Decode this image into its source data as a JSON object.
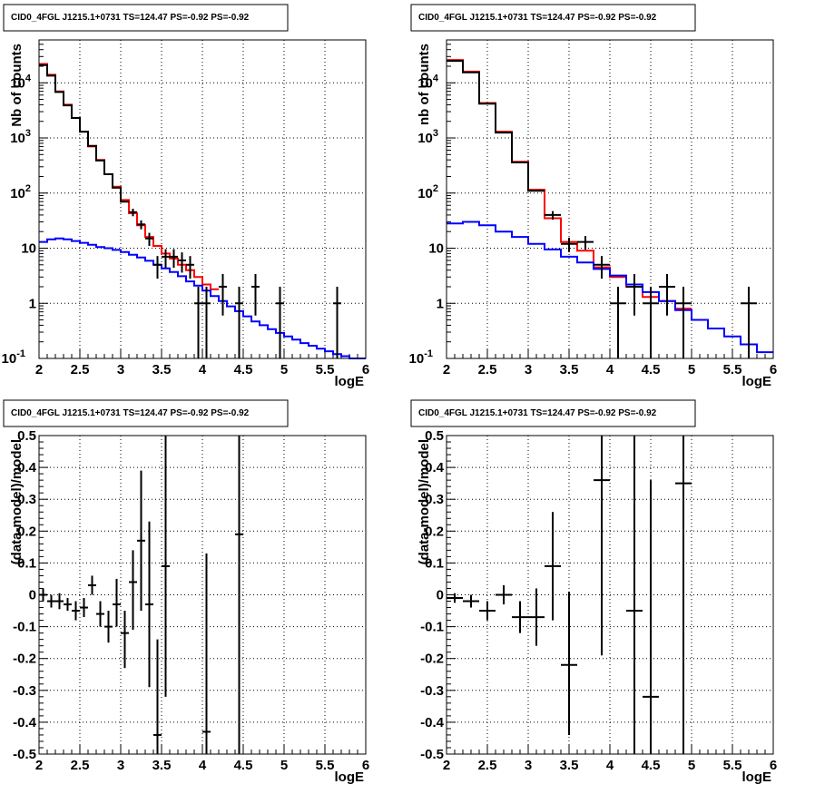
{
  "chart_data": [
    {
      "type": "line",
      "title": "CID0_4FGL J1215.1+0731 TS=124.47 PS=-0.92 PS=-0.92",
      "xlabel": "logE",
      "ylabel": "Nb of counts",
      "xlim": [
        2,
        6
      ],
      "ylim": [
        0.1,
        60000
      ],
      "yscale": "log",
      "x_ticks": [
        "2",
        "2.5",
        "3",
        "3.5",
        "4",
        "4.5",
        "5",
        "5.5",
        "6"
      ],
      "y_ticks": [
        "10^-1",
        "1",
        "10",
        "10^2",
        "10^3",
        "10^4"
      ],
      "grid": true,
      "series": [
        {
          "kind": "step",
          "color": "#ff0000",
          "bin_width": 0.1,
          "x": [
            2.0,
            2.1,
            2.2,
            2.3,
            2.4,
            2.5,
            2.6,
            2.7,
            2.8,
            2.9,
            3.0,
            3.1,
            3.2,
            3.3,
            3.4,
            3.5,
            3.6,
            3.7,
            3.8,
            3.9,
            4.0,
            4.1
          ],
          "values": [
            22000,
            14000,
            7000,
            4000,
            2300,
            1300,
            700,
            400,
            220,
            130,
            75,
            43,
            26,
            16,
            11,
            8,
            6.5,
            5,
            4,
            3,
            2.2,
            1.8
          ]
        },
        {
          "kind": "step",
          "color": "#0000ff",
          "bin_width": 0.1,
          "x": [
            2.0,
            2.1,
            2.2,
            2.3,
            2.4,
            2.5,
            2.6,
            2.7,
            2.8,
            2.9,
            3.0,
            3.1,
            3.2,
            3.3,
            3.4,
            3.5,
            3.6,
            3.7,
            3.8,
            3.9,
            4.0,
            4.1,
            4.2,
            4.3,
            4.4,
            4.5,
            4.6,
            4.7,
            4.8,
            4.9,
            5.0,
            5.1,
            5.2,
            5.3,
            5.4,
            5.5,
            5.6,
            5.7,
            5.8,
            5.9
          ],
          "values": [
            13,
            14.5,
            15,
            14.5,
            13.5,
            12.5,
            11.5,
            10.5,
            10,
            9.3,
            8.5,
            7.6,
            6.8,
            5.9,
            5,
            4.3,
            3.7,
            3.1,
            2.5,
            2.1,
            1.7,
            1.35,
            1.1,
            0.88,
            0.72,
            0.58,
            0.47,
            0.4,
            0.34,
            0.29,
            0.25,
            0.22,
            0.19,
            0.17,
            0.15,
            0.135,
            0.12,
            0.11,
            0.1,
            0.1
          ]
        },
        {
          "kind": "step",
          "color": "#000000",
          "bin_width": 0.1,
          "x": [
            2.0,
            2.1,
            2.2,
            2.3,
            2.4,
            2.5,
            2.6,
            2.7,
            2.8,
            2.9,
            3.0
          ],
          "values": [
            21000,
            13500,
            6800,
            3900,
            2300,
            1300,
            720,
            390,
            220,
            125,
            70
          ]
        },
        {
          "kind": "errorbars",
          "color": "#000000",
          "half_width": 0.05,
          "x": [
            3.15,
            3.25,
            3.35,
            3.45,
            3.55,
            3.65,
            3.75,
            3.85,
            3.95,
            4.05,
            4.25,
            4.45,
            4.65,
            4.95,
            5.65
          ],
          "values": [
            45,
            27,
            15,
            5,
            7,
            7,
            6,
            5,
            1,
            1,
            2,
            1,
            2,
            1,
            1
          ],
          "err_up": [
            7,
            5,
            4,
            2.2,
            2.6,
            2.6,
            2.4,
            2.2,
            1,
            1,
            1.4,
            1,
            1.4,
            1,
            1
          ],
          "err_down": [
            7,
            5,
            4,
            2.2,
            2.6,
            2.6,
            2.4,
            2.2,
            0.9,
            0.9,
            1.4,
            0.9,
            1.4,
            0.9,
            0.9
          ]
        }
      ]
    },
    {
      "type": "line",
      "title": "CID0_4FGL J1215.1+0731 TS=124.47 PS=-0.92 PS=-0.92",
      "xlabel": "logE",
      "ylabel": "nb of counts",
      "xlim": [
        2,
        6
      ],
      "ylim": [
        0.1,
        60000
      ],
      "yscale": "log",
      "x_ticks": [
        "2",
        "2.5",
        "3",
        "3.5",
        "4",
        "4.5",
        "5",
        "5.5",
        "6"
      ],
      "y_ticks": [
        "10^-1",
        "1",
        "10",
        "10^2",
        "10^3",
        "10^4"
      ],
      "grid": true,
      "series": [
        {
          "kind": "step",
          "color": "#ff0000",
          "bin_width": 0.2,
          "x": [
            2.0,
            2.2,
            2.4,
            2.6,
            2.8,
            3.0,
            3.2,
            3.4,
            3.6,
            3.8,
            4.0,
            4.2,
            4.4,
            4.6,
            4.8
          ],
          "values": [
            26000,
            16000,
            4300,
            1300,
            370,
            115,
            35,
            13,
            9,
            4.5,
            3,
            2,
            1.3,
            1.1,
            0.8
          ]
        },
        {
          "kind": "step",
          "color": "#0000ff",
          "bin_width": 0.2,
          "x": [
            2.0,
            2.2,
            2.4,
            2.6,
            2.8,
            3.0,
            3.2,
            3.4,
            3.6,
            3.8,
            4.0,
            4.2,
            4.4,
            4.6,
            4.8,
            5.0,
            5.2,
            5.4,
            5.6,
            5.8
          ],
          "values": [
            28,
            30,
            26,
            20,
            16,
            12,
            9.5,
            7,
            5.5,
            4.2,
            3.2,
            2.2,
            1.6,
            1.1,
            0.75,
            0.5,
            0.35,
            0.25,
            0.18,
            0.13
          ]
        },
        {
          "kind": "step",
          "color": "#000000",
          "bin_width": 0.2,
          "x": [
            2.0,
            2.2,
            2.4,
            2.6,
            2.8,
            3.0
          ],
          "values": [
            25000,
            15500,
            4200,
            1250,
            360,
            110
          ]
        },
        {
          "kind": "errorbars",
          "color": "#000000",
          "half_width": 0.1,
          "x": [
            3.3,
            3.5,
            3.7,
            3.9,
            4.1,
            4.3,
            4.5,
            4.7,
            4.9,
            5.7
          ],
          "values": [
            40,
            12,
            13,
            5,
            1,
            2,
            1,
            2,
            1,
            1
          ],
          "err_up": [
            7,
            3.5,
            3.6,
            2.2,
            1,
            1.4,
            1,
            1.4,
            1,
            1
          ],
          "err_down": [
            7,
            3.5,
            3.6,
            2.2,
            0.9,
            1.4,
            0.9,
            1.4,
            0.9,
            0.9
          ]
        }
      ]
    },
    {
      "type": "scatter",
      "title": "CID0_4FGL J1215.1+0731 TS=124.47 PS=-0.92 PS=-0.92",
      "xlabel": "logE",
      "ylabel": "(data-model)/model",
      "xlim": [
        2,
        6
      ],
      "ylim": [
        -0.5,
        0.5
      ],
      "x_ticks": [
        "2",
        "2.5",
        "3",
        "3.5",
        "4",
        "4.5",
        "5",
        "5.5",
        "6"
      ],
      "y_ticks": [
        "-0.5",
        "-0.4",
        "-0.3",
        "-0.2",
        "-0.1",
        "0",
        "0.1",
        "0.2",
        "0.3",
        "0.4",
        "0.5"
      ],
      "grid": true,
      "series": [
        {
          "kind": "errorbars",
          "color": "#000000",
          "half_width": 0.05,
          "x": [
            2.05,
            2.15,
            2.25,
            2.35,
            2.45,
            2.55,
            2.65,
            2.75,
            2.85,
            2.95,
            3.05,
            3.15,
            3.25,
            3.35,
            3.45,
            3.55,
            4.05,
            4.45
          ],
          "values": [
            0.0,
            -0.02,
            -0.02,
            -0.03,
            -0.05,
            -0.04,
            0.03,
            -0.06,
            -0.1,
            -0.03,
            -0.12,
            0.04,
            0.17,
            -0.03,
            -0.44,
            0.09,
            -0.43,
            0.19
          ],
          "err_up": [
            0.02,
            0.02,
            0.025,
            0.02,
            0.03,
            0.03,
            0.03,
            0.04,
            0.05,
            0.08,
            0.07,
            0.1,
            0.22,
            0.26,
            0.3,
            0.5,
            0.56,
            0.4
          ],
          "err_down": [
            0.02,
            0.02,
            0.025,
            0.02,
            0.03,
            0.03,
            0.03,
            0.04,
            0.05,
            0.07,
            0.11,
            0.15,
            0.22,
            0.26,
            0.1,
            0.41,
            0.1,
            0.7
          ]
        }
      ]
    },
    {
      "type": "scatter",
      "title": "CID0_4FGL J1215.1+0731 TS=124.47 PS=-0.92 PS=-0.92",
      "xlabel": "logE",
      "ylabel": "(data-model)/model",
      "xlim": [
        2,
        6
      ],
      "ylim": [
        -0.5,
        0.5
      ],
      "x_ticks": [
        "2",
        "2.5",
        "3",
        "3.5",
        "4",
        "4.5",
        "5",
        "5.5",
        "6"
      ],
      "y_ticks": [
        "-0.5",
        "-0.4",
        "-0.3",
        "-0.2",
        "-0.1",
        "0",
        "0.1",
        "0.2",
        "0.3",
        "0.4",
        "0.5"
      ],
      "grid": true,
      "series": [
        {
          "kind": "errorbars",
          "color": "#000000",
          "half_width": 0.1,
          "x": [
            2.1,
            2.3,
            2.5,
            2.7,
            2.9,
            3.1,
            3.3,
            3.5,
            3.9,
            4.3,
            4.5,
            4.9
          ],
          "values": [
            -0.01,
            -0.02,
            -0.05,
            0.0,
            -0.07,
            -0.07,
            0.09,
            -0.22,
            0.36,
            -0.05,
            -0.32,
            0.35
          ],
          "err_up": [
            0.015,
            0.02,
            0.03,
            0.03,
            0.05,
            0.09,
            0.17,
            0.23,
            0.56,
            0.55,
            0.68,
            0.65
          ],
          "err_down": [
            0.015,
            0.02,
            0.03,
            0.03,
            0.05,
            0.09,
            0.17,
            0.22,
            0.55,
            0.45,
            0.2,
            0.85
          ]
        }
      ]
    }
  ]
}
